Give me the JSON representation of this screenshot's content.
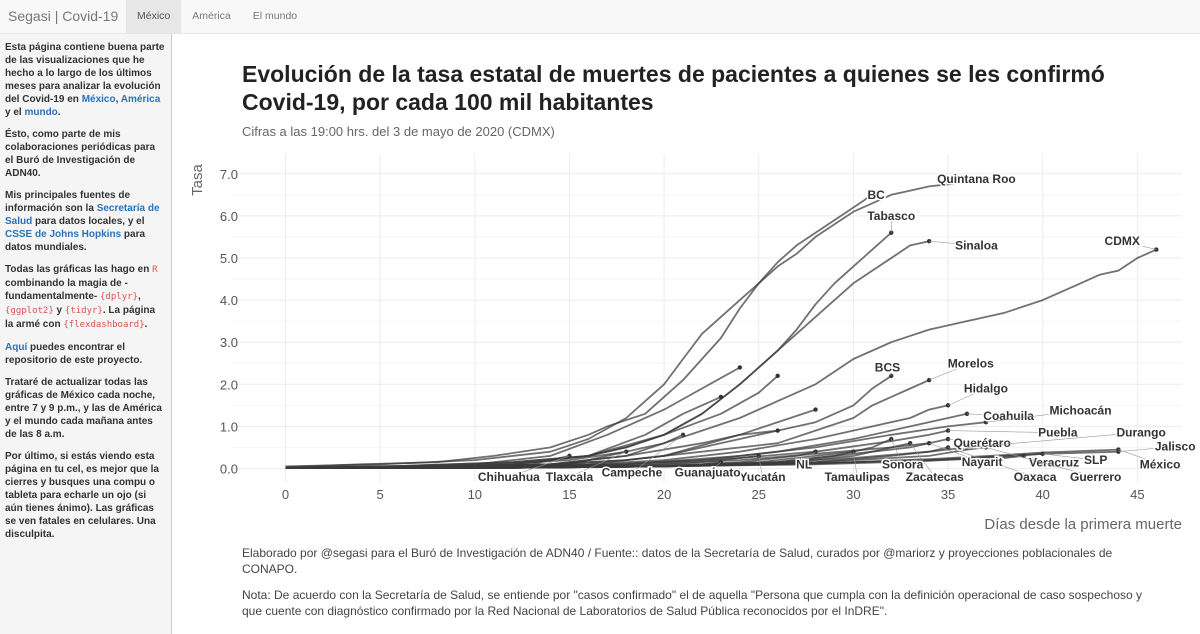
{
  "navbar": {
    "brand": "Segasi | Covid-19",
    "tabs": [
      {
        "label": "México",
        "active": true
      },
      {
        "label": "América",
        "active": false
      },
      {
        "label": "El mundo",
        "active": false
      }
    ]
  },
  "sidebar": {
    "p1": {
      "text": "Esta página contiene buena parte de las visualizaciones que he hecho a lo largo de los últimos meses para analizar la evolución del Covid-19 en ",
      "link1": "México",
      "sep1": ", ",
      "link2": "América",
      "sep2": " y el ",
      "link3": "mundo",
      "end": "."
    },
    "p2": "Ésto, como parte de mis colaboraciones periódicas para el Buró de Investigación de ADN40.",
    "p3": {
      "text": "Mis principales fuentes de información son la ",
      "link1": "Secretaría de Salud",
      "mid": " para datos locales, y el ",
      "link2": "CSSE de Johns Hopkins",
      "end": " para datos mundiales."
    },
    "p4": {
      "text": "Todas las gráficas las hago en ",
      "code1": "R",
      "mid1": " combinando la magia de -fundamentalmente- ",
      "code2": "{dplyr}",
      "sep1": ", ",
      "code3": "{ggplot2}",
      "sep2": " y ",
      "code4": "{tidyr}",
      "mid2": ". La página la armé con ",
      "code5": "{flexdashboard}",
      "end": "."
    },
    "p5": {
      "link": "Aquí",
      "text": " puedes encontrar el repositorio de este proyecto."
    },
    "p6": "Trataré de actualizar todas las gráficas de México cada noche, entre 7 y 9 p.m., y las de América y el mundo cada mañana antes de las 8 a.m.",
    "p7": "Por último, si estás viendo esta página en tu cel, es mejor que la cierres y busques una compu o tableta para echarle un ojo (si aún tienes ánimo). Las gráficas se ven fatales en celulares. Una disculpita."
  },
  "chart_data": {
    "type": "line",
    "title": "Evolución de la tasa estatal de muertes de pacientes a quienes se les confirmó Covid-19, por cada 100 mil habitantes",
    "subtitle": "Cifras a las 19:00 hrs. del 3 de mayo de 2020 (CDMX)",
    "xlabel": "Días desde la primera muerte",
    "ylabel": "Tasa",
    "xlim": [
      0,
      47
    ],
    "ylim": [
      0,
      7.3
    ],
    "x_ticks": [
      0,
      5,
      10,
      15,
      20,
      25,
      30,
      35,
      40,
      45
    ],
    "y_ticks": [
      0,
      1,
      2,
      3,
      4,
      5,
      6,
      7
    ],
    "x_tick_labels": [
      "0",
      "5",
      "10",
      "15",
      "20",
      "25",
      "30",
      "35",
      "40",
      "45"
    ],
    "y_tick_labels": [
      "0.0",
      "1.0",
      "2.0",
      "3.0",
      "4.0",
      "5.0",
      "6.0",
      "7.0"
    ],
    "grid": true,
    "series": [
      {
        "name": "BC",
        "x": [
          0,
          4,
          8,
          11,
          14,
          16,
          17,
          19,
          20,
          21,
          22,
          23,
          24,
          25,
          26,
          27,
          28,
          29,
          30,
          31
        ],
        "y": [
          0.03,
          0.1,
          0.15,
          0.3,
          0.5,
          0.8,
          1.0,
          1.3,
          1.7,
          2.1,
          2.6,
          3.1,
          3.8,
          4.4,
          4.9,
          5.3,
          5.6,
          5.9,
          6.2,
          6.5
        ]
      },
      {
        "name": "Quintana Roo",
        "x": [
          0,
          5,
          10,
          14,
          16,
          18,
          20,
          21,
          22,
          23,
          24,
          25,
          26,
          27,
          28,
          29,
          30,
          31,
          32,
          33,
          34,
          35,
          36
        ],
        "y": [
          0.05,
          0.1,
          0.2,
          0.4,
          0.7,
          1.2,
          2.0,
          2.6,
          3.2,
          3.6,
          4.0,
          4.4,
          4.8,
          5.1,
          5.5,
          5.8,
          6.1,
          6.3,
          6.5,
          6.6,
          6.7,
          6.75,
          6.8
        ]
      },
      {
        "name": "Tabasco",
        "x": [
          0,
          6,
          12,
          16,
          18,
          20,
          22,
          24,
          26,
          27,
          28,
          29,
          30,
          31,
          32
        ],
        "y": [
          0.02,
          0.06,
          0.15,
          0.3,
          0.5,
          0.8,
          1.3,
          2.0,
          2.8,
          3.3,
          3.9,
          4.4,
          4.8,
          5.2,
          5.6
        ]
      },
      {
        "name": "Sinaloa",
        "x": [
          0,
          6,
          12,
          16,
          18,
          20,
          22,
          24,
          25,
          26,
          27,
          28,
          29,
          30,
          31,
          32,
          33,
          34
        ],
        "y": [
          0.02,
          0.06,
          0.15,
          0.3,
          0.5,
          0.8,
          1.3,
          2.0,
          2.4,
          2.8,
          3.2,
          3.6,
          4.0,
          4.4,
          4.7,
          5.0,
          5.3,
          5.4
        ]
      },
      {
        "name": "CDMX",
        "x": [
          0,
          4,
          8,
          12,
          15,
          18,
          20,
          22,
          24,
          26,
          28,
          30,
          32,
          34,
          36,
          38,
          40,
          42,
          43,
          44,
          45,
          46
        ],
        "y": [
          0.01,
          0.03,
          0.06,
          0.12,
          0.2,
          0.4,
          0.6,
          0.9,
          1.2,
          1.6,
          2.0,
          2.6,
          3.0,
          3.3,
          3.5,
          3.7,
          4.0,
          4.4,
          4.6,
          4.7,
          5.0,
          5.2
        ]
      },
      {
        "name": "BCS",
        "x": [
          0,
          8,
          14,
          18,
          20,
          22,
          24,
          26,
          28,
          30,
          31,
          32
        ],
        "y": [
          0.02,
          0.04,
          0.1,
          0.2,
          0.3,
          0.5,
          0.7,
          0.9,
          1.1,
          1.5,
          1.9,
          2.2
        ]
      },
      {
        "name": "Morelos",
        "x": [
          0,
          8,
          14,
          18,
          22,
          26,
          28,
          30,
          31,
          32,
          33,
          34
        ],
        "y": [
          0.01,
          0.03,
          0.1,
          0.2,
          0.4,
          0.6,
          0.9,
          1.2,
          1.5,
          1.7,
          1.9,
          2.1
        ]
      },
      {
        "name": "Hidalgo",
        "x": [
          0,
          10,
          16,
          20,
          24,
          28,
          31,
          33,
          34,
          35
        ],
        "y": [
          0.01,
          0.03,
          0.1,
          0.2,
          0.4,
          0.7,
          1.0,
          1.2,
          1.4,
          1.5
        ]
      },
      {
        "name": "Coahuila",
        "x": [
          0,
          10,
          16,
          22,
          26,
          30,
          33,
          35,
          36
        ],
        "y": [
          0.01,
          0.02,
          0.08,
          0.2,
          0.4,
          0.7,
          1.0,
          1.2,
          1.3
        ]
      },
      {
        "name": "Michoacán",
        "x": [
          0,
          12,
          18,
          24,
          28,
          32,
          35,
          37
        ],
        "y": [
          0.01,
          0.03,
          0.1,
          0.3,
          0.5,
          0.8,
          1.0,
          1.1
        ]
      },
      {
        "name": "Puebla",
        "x": [
          0,
          12,
          18,
          24,
          28,
          32,
          34,
          35
        ],
        "y": [
          0.01,
          0.03,
          0.1,
          0.25,
          0.4,
          0.65,
          0.8,
          0.9
        ]
      },
      {
        "name": "Querétaro",
        "x": [
          0,
          12,
          18,
          24,
          28,
          32,
          34,
          35
        ],
        "y": [
          0.01,
          0.03,
          0.08,
          0.2,
          0.35,
          0.5,
          0.6,
          0.7
        ]
      },
      {
        "name": "Durango",
        "x": [
          0,
          12,
          20,
          26,
          30,
          34,
          36
        ],
        "y": [
          0.01,
          0.02,
          0.06,
          0.15,
          0.25,
          0.4,
          0.5
        ]
      },
      {
        "name": "Jalisco",
        "x": [
          0,
          12,
          20,
          28,
          34,
          38,
          40,
          44
        ],
        "y": [
          0.01,
          0.02,
          0.05,
          0.12,
          0.2,
          0.3,
          0.35,
          0.4
        ]
      },
      {
        "name": "México",
        "x": [
          0,
          12,
          20,
          28,
          34,
          38,
          40,
          44
        ],
        "y": [
          0.01,
          0.02,
          0.05,
          0.12,
          0.22,
          0.32,
          0.38,
          0.45
        ]
      },
      {
        "name": "SLP",
        "x": [
          0,
          12,
          20,
          28,
          34,
          38,
          40
        ],
        "y": [
          0.01,
          0.02,
          0.05,
          0.1,
          0.18,
          0.28,
          0.35
        ]
      },
      {
        "name": "Veracruz",
        "x": [
          0,
          12,
          20,
          28,
          34,
          38,
          39
        ],
        "y": [
          0.01,
          0.02,
          0.05,
          0.12,
          0.2,
          0.25,
          0.3
        ]
      },
      {
        "name": "Guerrero",
        "x": [
          0,
          12,
          20,
          28,
          34,
          36,
          37
        ],
        "y": [
          0.01,
          0.02,
          0.05,
          0.15,
          0.3,
          0.45,
          0.5
        ]
      },
      {
        "name": "Oaxaca",
        "x": [
          0,
          12,
          20,
          28,
          32,
          34,
          35
        ],
        "y": [
          0.01,
          0.02,
          0.05,
          0.15,
          0.3,
          0.4,
          0.5
        ]
      },
      {
        "name": "Nayarit",
        "x": [
          0,
          12,
          20,
          26,
          30,
          33,
          34
        ],
        "y": [
          0.01,
          0.02,
          0.05,
          0.15,
          0.35,
          0.5,
          0.6
        ]
      },
      {
        "name": "Zacatecas",
        "x": [
          0,
          12,
          20,
          26,
          30,
          32,
          33
        ],
        "y": [
          0.01,
          0.02,
          0.05,
          0.12,
          0.3,
          0.5,
          0.6
        ]
      },
      {
        "name": "Sonora",
        "x": [
          0,
          12,
          20,
          26,
          29,
          31,
          32
        ],
        "y": [
          0.01,
          0.02,
          0.05,
          0.15,
          0.3,
          0.5,
          0.7
        ]
      },
      {
        "name": "Tamaulipas",
        "x": [
          0,
          12,
          20,
          25,
          28,
          29,
          30
        ],
        "y": [
          0.01,
          0.02,
          0.05,
          0.15,
          0.3,
          0.35,
          0.4
        ]
      },
      {
        "name": "NL",
        "x": [
          0,
          12,
          20,
          24,
          27,
          28
        ],
        "y": [
          0.01,
          0.02,
          0.05,
          0.15,
          0.3,
          0.4
        ]
      },
      {
        "name": "Yucatán",
        "x": [
          0,
          12,
          18,
          22,
          24,
          25
        ],
        "y": [
          0.01,
          0.02,
          0.05,
          0.15,
          0.25,
          0.3
        ]
      },
      {
        "name": "Guanajuato",
        "x": [
          0,
          10,
          16,
          20,
          22,
          23
        ],
        "y": [
          0.01,
          0.02,
          0.04,
          0.08,
          0.1,
          0.15
        ]
      },
      {
        "name": "Campeche",
        "x": [
          0,
          8,
          14,
          18,
          20,
          21
        ],
        "y": [
          0.01,
          0.03,
          0.1,
          0.3,
          0.6,
          0.8
        ]
      },
      {
        "name": "Tlaxcala",
        "x": [
          0,
          8,
          12,
          15,
          17,
          18
        ],
        "y": [
          0.01,
          0.02,
          0.05,
          0.1,
          0.3,
          0.4
        ]
      },
      {
        "name": "Chihuahua",
        "x": [
          0,
          6,
          10,
          13,
          14,
          15
        ],
        "y": [
          0.01,
          0.02,
          0.05,
          0.1,
          0.2,
          0.3
        ]
      },
      {
        "name": "",
        "x": [
          0,
          6,
          10,
          14,
          17,
          20,
          22,
          24
        ],
        "y": [
          0.02,
          0.05,
          0.1,
          0.3,
          0.8,
          1.4,
          1.9,
          2.4
        ]
      },
      {
        "name": "",
        "x": [
          0,
          8,
          12,
          16,
          20,
          23,
          25,
          26
        ],
        "y": [
          0.02,
          0.04,
          0.1,
          0.3,
          0.8,
          1.3,
          1.8,
          2.2
        ]
      },
      {
        "name": "",
        "x": [
          0,
          6,
          12,
          16,
          19,
          21,
          23
        ],
        "y": [
          0.01,
          0.04,
          0.1,
          0.3,
          0.8,
          1.3,
          1.7
        ]
      },
      {
        "name": "",
        "x": [
          0,
          10,
          16,
          20,
          24,
          28
        ],
        "y": [
          0.01,
          0.03,
          0.1,
          0.3,
          0.8,
          1.4
        ]
      },
      {
        "name": "",
        "x": [
          0,
          8,
          14,
          18,
          22,
          24,
          26
        ],
        "y": [
          0.01,
          0.03,
          0.1,
          0.3,
          0.6,
          0.8,
          0.9
        ]
      }
    ],
    "labels": [
      {
        "text": "BC",
        "x": 31.2,
        "y": 6.5,
        "point": [
          31,
          6.5
        ]
      },
      {
        "text": "Quintana Roo",
        "x": 36.5,
        "y": 6.88,
        "point": [
          36,
          6.8
        ]
      },
      {
        "text": "Tabasco",
        "x": 32,
        "y": 6.0,
        "point": [
          32,
          5.6
        ]
      },
      {
        "text": "Sinaloa",
        "x": 36.5,
        "y": 5.3,
        "point": [
          34,
          5.4
        ]
      },
      {
        "text": "CDMX",
        "x": 44.2,
        "y": 5.4,
        "point": [
          46,
          5.2
        ]
      },
      {
        "text": "BCS",
        "x": 31.8,
        "y": 2.4,
        "point": [
          32,
          2.2
        ]
      },
      {
        "text": "Morelos",
        "x": 36.2,
        "y": 2.5,
        "point": [
          34,
          2.1
        ]
      },
      {
        "text": "Hidalgo",
        "x": 37,
        "y": 1.9,
        "point": [
          35,
          1.5
        ]
      },
      {
        "text": "Coahuila",
        "x": 38.2,
        "y": 1.25,
        "point": [
          36,
          1.3
        ]
      },
      {
        "text": "Michoacán",
        "x": 42,
        "y": 1.38,
        "point": [
          37,
          1.1
        ]
      },
      {
        "text": "Puebla",
        "x": 40.8,
        "y": 0.85,
        "point": [
          35,
          0.9
        ]
      },
      {
        "text": "Querétaro",
        "x": 36.8,
        "y": 0.6,
        "point": [
          35,
          0.7
        ]
      },
      {
        "text": "Durango",
        "x": 45.2,
        "y": 0.86,
        "point": [
          36,
          0.5
        ]
      },
      {
        "text": "Jalisco",
        "x": 47,
        "y": 0.52,
        "point": [
          44,
          0.4
        ]
      },
      {
        "text": "México",
        "x": 46.2,
        "y": 0.1,
        "point": [
          44,
          0.45
        ]
      },
      {
        "text": "SLP",
        "x": 42.8,
        "y": 0.2,
        "point": [
          40,
          0.35
        ]
      },
      {
        "text": "Veracruz",
        "x": 40.6,
        "y": 0.14,
        "point": [
          39,
          0.3
        ]
      },
      {
        "text": "Guerrero",
        "x": 42.8,
        "y": -0.2,
        "point": [
          37,
          0.5
        ]
      },
      {
        "text": "Oaxaca",
        "x": 39.6,
        "y": -0.2,
        "point": [
          35,
          0.5
        ]
      },
      {
        "text": "Nayarit",
        "x": 36.8,
        "y": 0.15,
        "point": [
          34,
          0.6
        ]
      },
      {
        "text": "Zacatecas",
        "x": 34.3,
        "y": -0.2,
        "point": [
          33,
          0.6
        ]
      },
      {
        "text": "Sonora",
        "x": 32.6,
        "y": 0.1,
        "point": [
          32,
          0.7
        ]
      },
      {
        "text": "Tamaulipas",
        "x": 30.2,
        "y": -0.2,
        "point": [
          30,
          0.4
        ]
      },
      {
        "text": "NL",
        "x": 27.4,
        "y": 0.1,
        "point": [
          28,
          0.4
        ]
      },
      {
        "text": "Yucatán",
        "x": 25.2,
        "y": -0.2,
        "point": [
          25,
          0.3
        ]
      },
      {
        "text": "Guanajuato",
        "x": 22.3,
        "y": -0.1,
        "point": [
          23,
          0.15
        ]
      },
      {
        "text": "Campeche",
        "x": 18.3,
        "y": -0.1,
        "point": [
          21,
          0.8
        ]
      },
      {
        "text": "Tlaxcala",
        "x": 15,
        "y": -0.2,
        "point": [
          18,
          0.4
        ]
      },
      {
        "text": "Chihuahua",
        "x": 11.8,
        "y": -0.2,
        "point": [
          15,
          0.3
        ]
      }
    ]
  },
  "caption": "Elaborado por @segasi  para el Buró de Investigación de ADN40 / Fuente:: datos de la Secretaría de Salud, curados por @mariorz y proyecciones poblacionales de CONAPO.",
  "note": "Nota: De acuerdo con la Secretaría de Salud, se entiende por \"casos confirmado\" el de aquella \"Persona que cumpla con la definición operacional de caso sospechoso y que cuente con diagnóstico confirmado por la Red Nacional de Laboratorios de Salud Pública reconocidos por el InDRE\"."
}
